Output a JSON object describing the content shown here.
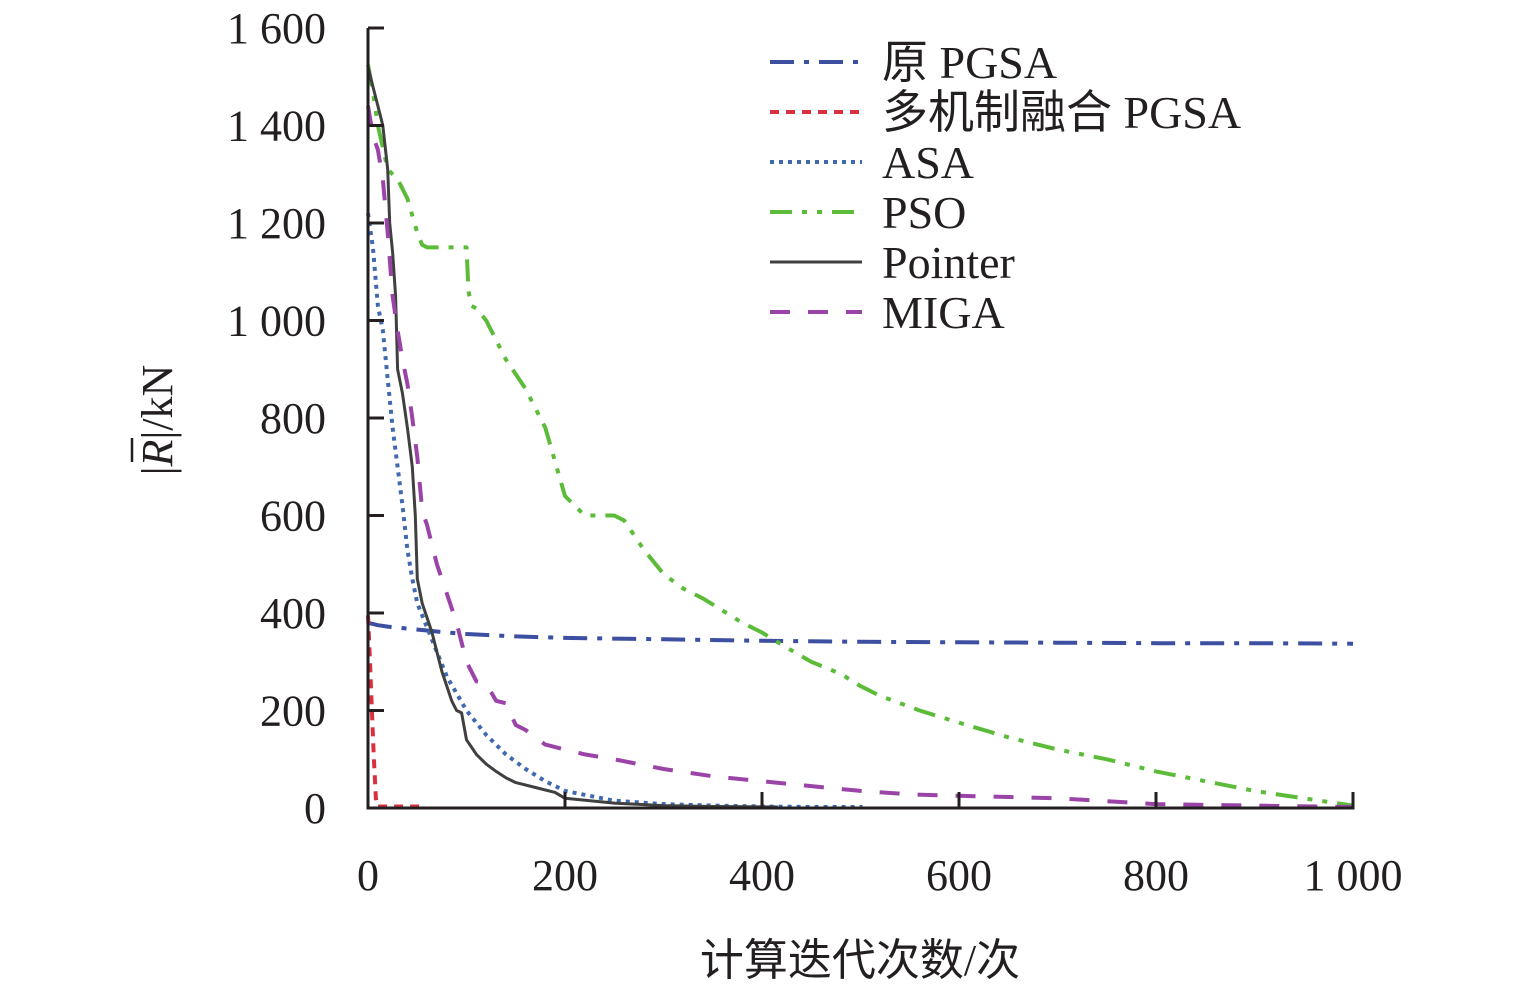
{
  "chart_data": {
    "type": "line",
    "title": "",
    "xlabel": "计算迭代次数/次",
    "ylabel": "|R̄|/kN",
    "ylabel_parts": {
      "open": "|",
      "symbol": "R",
      "close": "|/kN"
    },
    "xlim": [
      0,
      1000
    ],
    "ylim": [
      0,
      1600
    ],
    "x_ticks": [
      0,
      200,
      400,
      600,
      800,
      1000
    ],
    "x_tick_labels": [
      "0",
      "200",
      "400",
      "600",
      "800",
      "1 000"
    ],
    "y_ticks": [
      0,
      200,
      400,
      600,
      800,
      1000,
      1200,
      1400,
      1600
    ],
    "y_tick_labels": [
      "0",
      "200",
      "400",
      "600",
      "800",
      "1 000",
      "1 200",
      "1 400",
      "1 600"
    ],
    "grid": false,
    "legend_position": "top-right",
    "series": [
      {
        "name": "原 PGSA",
        "color": "#3c4fa0",
        "style": "dash-dot",
        "x": [
          0,
          10,
          20,
          40,
          60,
          80,
          100,
          150,
          200,
          300,
          400,
          500,
          600,
          700,
          800,
          900,
          1000
        ],
        "y": [
          380,
          375,
          372,
          368,
          364,
          360,
          357,
          352,
          349,
          346,
          343,
          341,
          340,
          339,
          338,
          338,
          337
        ]
      },
      {
        "name": "多机制融合 PGSA",
        "color": "#d9303f",
        "style": "dash",
        "x": [
          0,
          2,
          4,
          6,
          8,
          9,
          10,
          20,
          53
        ],
        "y": [
          395,
          300,
          200,
          100,
          20,
          5,
          3,
          3,
          3
        ]
      },
      {
        "name": "ASA",
        "color": "#4169b0",
        "style": "dot",
        "x": [
          0,
          5,
          10,
          15,
          20,
          25,
          30,
          35,
          40,
          45,
          50,
          60,
          70,
          80,
          100,
          120,
          140,
          160,
          180,
          200,
          250,
          300,
          350,
          400,
          450,
          502
        ],
        "y": [
          1220,
          1150,
          1030,
          980,
          880,
          780,
          700,
          620,
          530,
          470,
          420,
          370,
          320,
          270,
          200,
          150,
          110,
          80,
          55,
          35,
          15,
          8,
          5,
          3,
          2,
          2
        ]
      },
      {
        "name": "PSO",
        "color": "#5dbb3a",
        "style": "dash-dot-dot",
        "x": [
          0,
          5,
          10,
          20,
          30,
          40,
          50,
          55,
          60,
          80,
          100,
          102,
          105,
          110,
          120,
          140,
          160,
          180,
          200,
          220,
          250,
          260,
          280,
          300,
          320,
          340,
          360,
          380,
          400,
          420,
          450,
          480,
          500,
          520,
          560,
          600,
          650,
          700,
          750,
          800,
          850,
          900,
          950,
          1000
        ],
        "y": [
          1525,
          1470,
          1400,
          1310,
          1290,
          1250,
          1180,
          1155,
          1150,
          1150,
          1150,
          1060,
          1030,
          1025,
          1000,
          920,
          860,
          780,
          640,
          600,
          600,
          590,
          530,
          480,
          450,
          430,
          405,
          380,
          360,
          335,
          300,
          275,
          250,
          230,
          200,
          175,
          145,
          120,
          100,
          75,
          55,
          35,
          20,
          5
        ]
      },
      {
        "name": "Pointer",
        "color": "#404041",
        "style": "solid",
        "x": [
          0,
          5,
          10,
          15,
          20,
          22,
          25,
          28,
          30,
          35,
          40,
          45,
          48,
          50,
          55,
          60,
          65,
          70,
          75,
          80,
          85,
          90,
          95,
          100,
          110,
          120,
          130,
          140,
          150,
          170,
          190,
          200,
          250,
          300,
          350,
          416
        ],
        "y": [
          1520,
          1480,
          1440,
          1400,
          1310,
          1200,
          1140,
          1050,
          900,
          850,
          780,
          700,
          600,
          470,
          420,
          390,
          360,
          320,
          280,
          250,
          220,
          200,
          195,
          140,
          110,
          90,
          75,
          62,
          52,
          42,
          32,
          20,
          10,
          5,
          3,
          2
        ]
      },
      {
        "name": "MIGA",
        "color": "#9b44a8",
        "style": "long-dash",
        "x": [
          0,
          5,
          10,
          15,
          20,
          25,
          30,
          35,
          40,
          45,
          50,
          55,
          60,
          70,
          80,
          90,
          100,
          110,
          120,
          130,
          140,
          150,
          160,
          180,
          200,
          220,
          250,
          300,
          350,
          400,
          450,
          500,
          550,
          600,
          700,
          800,
          900,
          1000
        ],
        "y": [
          1440,
          1380,
          1350,
          1290,
          1180,
          1050,
          980,
          920,
          870,
          800,
          720,
          610,
          580,
          500,
          440,
          380,
          300,
          260,
          255,
          220,
          215,
          170,
          160,
          130,
          120,
          110,
          100,
          80,
          65,
          55,
          45,
          35,
          28,
          25,
          20,
          8,
          5,
          2
        ]
      }
    ]
  }
}
